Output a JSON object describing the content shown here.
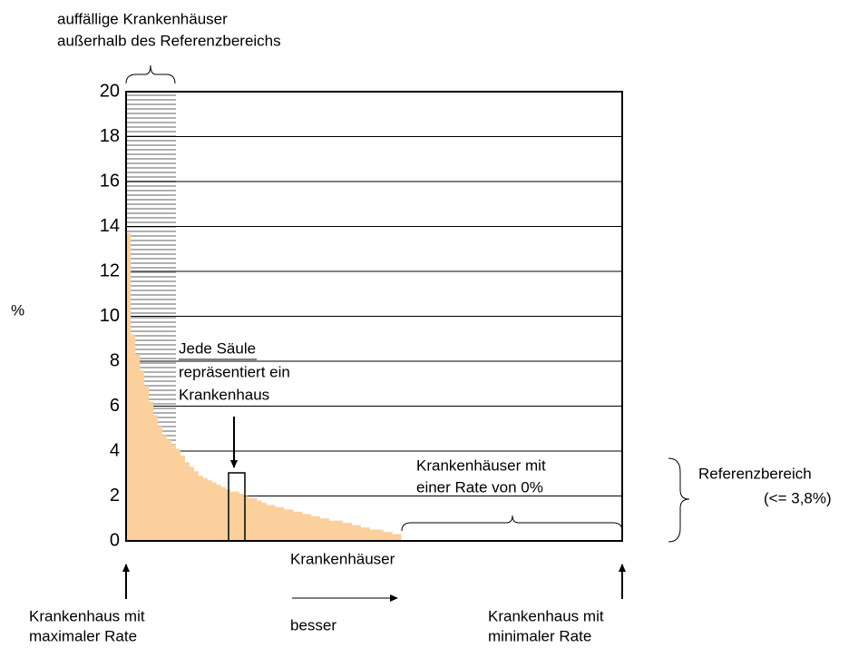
{
  "chart_data": {
    "type": "bar",
    "y_label": "%",
    "x_label": "Krankenhäuser",
    "values": [
      13.7,
      9.2,
      8.3,
      7.6,
      6.9,
      6.2,
      5.6,
      5.1,
      4.7,
      4.5,
      4.3,
      4.1,
      3.8,
      3.5,
      3.3,
      3.1,
      2.9,
      2.8,
      2.7,
      2.6,
      2.5,
      2.4,
      2.3,
      2.2,
      2.2,
      2.1,
      2.0,
      1.9,
      1.9,
      1.8,
      1.7,
      1.6,
      1.6,
      1.5,
      1.5,
      1.4,
      1.4,
      1.3,
      1.3,
      1.2,
      1.2,
      1.1,
      1.1,
      1.0,
      1.0,
      0.9,
      0.9,
      0.9,
      0.8,
      0.8,
      0.7,
      0.7,
      0.6,
      0.6,
      0.5,
      0.5,
      0.5,
      0.4,
      0.4,
      0.3,
      0.3,
      0,
      0,
      0,
      0,
      0,
      0,
      0,
      0,
      0,
      0,
      0,
      0,
      0,
      0,
      0,
      0,
      0,
      0,
      0,
      0,
      0,
      0,
      0,
      0,
      0,
      0,
      0,
      0,
      0,
      0,
      0,
      0,
      0,
      0,
      0,
      0,
      0,
      0,
      0,
      0,
      0,
      0,
      0,
      0,
      0,
      0,
      0,
      0,
      0
    ],
    "color": "#fcd09c",
    "ylim": [
      0,
      20
    ],
    "yticks": [
      0,
      2,
      4,
      6,
      8,
      10,
      12,
      14,
      16,
      18,
      20
    ],
    "grid": true,
    "annotations": {
      "outliers": [
        "auffällige Krankenhäuser",
        "außerhalb des Referenzbereichs"
      ],
      "column": [
        "Jede Säule",
        "repräsentiert ein",
        "Krankenhaus"
      ],
      "zero": [
        "Krankenhäuser mit",
        "einer Rate von 0%"
      ],
      "reference": [
        "Referenzbereich",
        "(<= 3,8%)"
      ],
      "max": [
        "Krankenhaus mit",
        "maximaler Rate"
      ],
      "better": "besser",
      "min": [
        "Krankenhaus mit",
        "minimaler Rate"
      ]
    }
  }
}
